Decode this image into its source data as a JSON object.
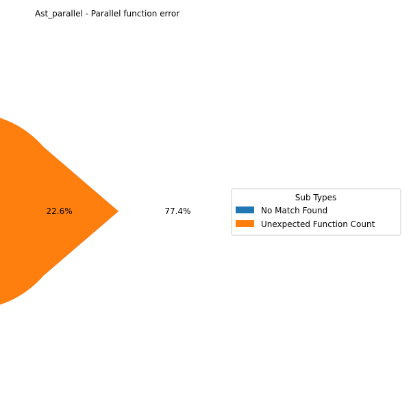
{
  "chart_data": {
    "type": "pie",
    "title": "Ast_parallel - Parallel function error",
    "slices": [
      {
        "label": "  No Match Found",
        "value": 22.6,
        "value_label": "22.6%",
        "color": "#1f77b4"
      },
      {
        "label": "  Unexpected Function Count",
        "value": 77.4,
        "value_label": "77.4%",
        "color": "#ff7f0e"
      }
    ],
    "legend": {
      "title": "Sub Types",
      "placement": "right"
    }
  }
}
